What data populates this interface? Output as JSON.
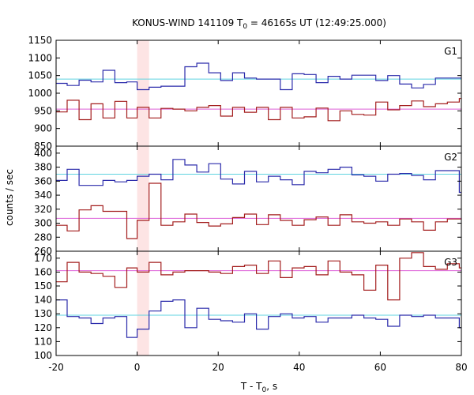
{
  "chart_data": {
    "type": "line",
    "title": "KONUS-WIND 141109 T",
    "title_sub": "0",
    "title_rest": " = 46165s UT (12:49:25.000)",
    "xlabel": "T - T",
    "xlabel_sub": "0",
    "xlabel_rest": ", s",
    "ylabel": "counts / sec",
    "x_ticks": [
      "-20",
      "0",
      "20",
      "40",
      "60",
      "80"
    ],
    "xlim": [
      -20,
      80
    ],
    "highlight_interval": [
      0,
      2.944
    ],
    "highlight_color": "#fde4e4",
    "bin_edges": [
      -20.224,
      -17.28,
      -14.336,
      -11.392,
      -8.448,
      -5.504,
      -2.56,
      0.0,
      2.944,
      5.888,
      8.832,
      11.776,
      14.72,
      17.664,
      20.608,
      23.552,
      26.496,
      29.44,
      32.384,
      35.328,
      38.272,
      41.216,
      44.16,
      47.104,
      50.048,
      52.992,
      55.936,
      58.88,
      61.824,
      64.768,
      67.712,
      70.656,
      73.6,
      76.544,
      79.488,
      82.432
    ],
    "panels": [
      {
        "label": "G1",
        "ylim": [
          850,
          1150
        ],
        "y_ticks": [
          "1150",
          "1100",
          "1050",
          "1000",
          "950",
          "900",
          "850"
        ],
        "series": [
          {
            "color": "#2b2bab",
            "mean": 1040,
            "mean_color": "#5fd3e0",
            "values": [
              1028,
              1022,
              1037,
              1032,
              1065,
              1030,
              1032,
              1010,
              1017,
              1020,
              1020,
              1075,
              1085,
              1058,
              1036,
              1058,
              1043,
              1040,
              1040,
              1010,
              1055,
              1053,
              1030,
              1048,
              1040,
              1051,
              1051,
              1036,
              1050,
              1026,
              1015,
              1025,
              1043,
              1043,
              1043
            ]
          },
          {
            "color": "#a31d1d",
            "mean": 955,
            "mean_color": "#dd5fd8",
            "values": [
              947,
              980,
              925,
              970,
              930,
              977,
              930,
              960,
              930,
              957,
              955,
              950,
              960,
              965,
              935,
              960,
              946,
              960,
              925,
              960,
              930,
              933,
              958,
              922,
              950,
              940,
              938,
              975,
              953,
              965,
              978,
              962,
              970,
              975,
              985
            ]
          }
        ]
      },
      {
        "label": "G2",
        "ylim": [
          260,
          410
        ],
        "y_ticks": [
          "400",
          "380",
          "360",
          "340",
          "320",
          "300",
          "280",
          "260"
        ],
        "series": [
          {
            "color": "#2b2bab",
            "mean": 370,
            "mean_color": "#5fd3e0",
            "values": [
              361,
              377,
              354,
              354,
              361,
              359,
              361,
              367,
              370,
              362,
              391,
              383,
              373,
              385,
              363,
              356,
              374,
              359,
              367,
              362,
              355,
              374,
              372,
              377,
              380,
              369,
              367,
              360,
              370,
              371,
              368,
              362,
              375,
              375,
              344
            ]
          },
          {
            "color": "#a31d1d",
            "mean": 307,
            "mean_color": "#dd5fd8",
            "values": [
              297,
              289,
              319,
              325,
              317,
              317,
              278,
              304,
              357,
              297,
              302,
              313,
              301,
              296,
              299,
              308,
              313,
              298,
              312,
              304,
              297,
              305,
              309,
              297,
              312,
              302,
              300,
              302,
              297,
              306,
              302,
              290,
              302,
              306,
              306
            ]
          }
        ]
      },
      {
        "label": "G3",
        "ylim": [
          100,
          270
        ],
        "y_ticks": [
          "270",
          "260",
          "250",
          "240",
          "230",
          "220",
          "210",
          "200",
          "190",
          "180",
          "170",
          "160",
          "150",
          "140",
          "130",
          "120",
          "110",
          "100"
        ],
        "y_ticks_shown": [
          "170",
          "160",
          "150",
          "140",
          "130",
          "120",
          "110",
          "100"
        ],
        "ylim_shown": [
          100,
          175
        ],
        "series": [
          {
            "color": "#a31d1d",
            "mean": 161,
            "mean_color": "#dd5fd8",
            "values": [
              153,
              167,
              160,
              159,
              157,
              149,
              163,
              160,
              167,
              158,
              160,
              161,
              161,
              160,
              159,
              164,
              165,
              159,
              168,
              156,
              163,
              164,
              158,
              168,
              160,
              158,
              147,
              165,
              140,
              170,
              174,
              164,
              162,
              166,
              163
            ]
          },
          {
            "color": "#2b2bab",
            "mean": 129,
            "mean_color": "#5fd3e0",
            "values": [
              140,
              128,
              127,
              123,
              127,
              128,
              113,
              119,
              132,
              139,
              140,
              120,
              134,
              126,
              125,
              124,
              130,
              119,
              128,
              130,
              127,
              128,
              124,
              127,
              127,
              129,
              127,
              126,
              121,
              129,
              128,
              129,
              127,
              127,
              120
            ]
          }
        ]
      }
    ]
  }
}
